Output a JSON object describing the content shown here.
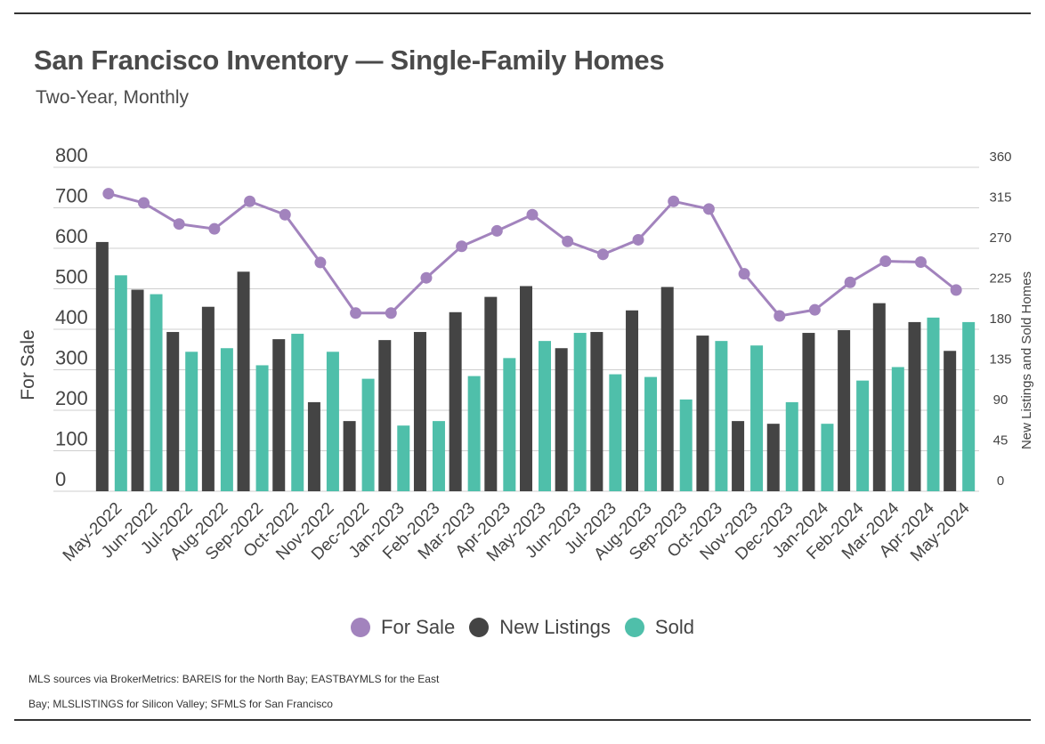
{
  "header": {
    "title": "San Francisco Inventory — Single-Family Homes",
    "subtitle": "Two-Year, Monthly"
  },
  "legend": {
    "items": [
      {
        "label": "For Sale",
        "color": "#a283bd"
      },
      {
        "label": "New Listings",
        "color": "#444444"
      },
      {
        "label": "Sold",
        "color": "#4fbfaa"
      }
    ]
  },
  "footer": {
    "source_line1": "MLS sources via BrokerMetrics: BAREIS for the North Bay; EASTBAYMLS for the East",
    "source_line2": "Bay; MLSLISTINGS for Silicon Valley; SFMLS for San Francisco"
  },
  "chart_data": {
    "type": "bar",
    "categories": [
      "May-2022",
      "Jun-2022",
      "Jul-2022",
      "Aug-2022",
      "Sep-2022",
      "Oct-2022",
      "Nov-2022",
      "Dec-2022",
      "Jan-2023",
      "Feb-2023",
      "Mar-2023",
      "Apr-2023",
      "May-2023",
      "Jun-2023",
      "Jul-2023",
      "Aug-2023",
      "Sep-2023",
      "Oct-2023",
      "Nov-2023",
      "Dec-2023",
      "Jan-2024",
      "Feb-2024",
      "Mar-2024",
      "Apr-2024",
      "May-2024"
    ],
    "left_axis": {
      "label": "For Sale",
      "ylim": [
        0,
        800
      ],
      "ticks": [
        0,
        100,
        200,
        300,
        400,
        500,
        600,
        700,
        800
      ]
    },
    "right_axis": {
      "label": "New Listings and Sold Homes",
      "ylim": [
        0,
        360
      ],
      "ticks": [
        0,
        45,
        90,
        135,
        180,
        225,
        270,
        315,
        360
      ]
    },
    "grid": true,
    "legend_position": "bottom-center",
    "series": [
      {
        "name": "For Sale",
        "type": "line",
        "axis": "left",
        "color": "#a283bd",
        "values": [
          735,
          712,
          660,
          648,
          716,
          683,
          565,
          440,
          440,
          527,
          605,
          643,
          683,
          617,
          585,
          621,
          716,
          697,
          537,
          433,
          448,
          516,
          568,
          566,
          497
        ]
      },
      {
        "name": "New Listings",
        "type": "bar",
        "axis": "right",
        "color": "#444444",
        "values": [
          277,
          224,
          177,
          205,
          244,
          169,
          99,
          78,
          168,
          177,
          199,
          216,
          228,
          159,
          177,
          201,
          227,
          173,
          78,
          75,
          176,
          179,
          209,
          188,
          156
        ]
      },
      {
        "name": "Sold",
        "type": "bar",
        "axis": "right",
        "color": "#4fbfaa",
        "values": [
          240,
          219,
          155,
          159,
          140,
          175,
          155,
          125,
          73,
          78,
          128,
          148,
          167,
          176,
          130,
          127,
          102,
          167,
          162,
          99,
          75,
          123,
          138,
          193,
          188
        ]
      }
    ]
  }
}
